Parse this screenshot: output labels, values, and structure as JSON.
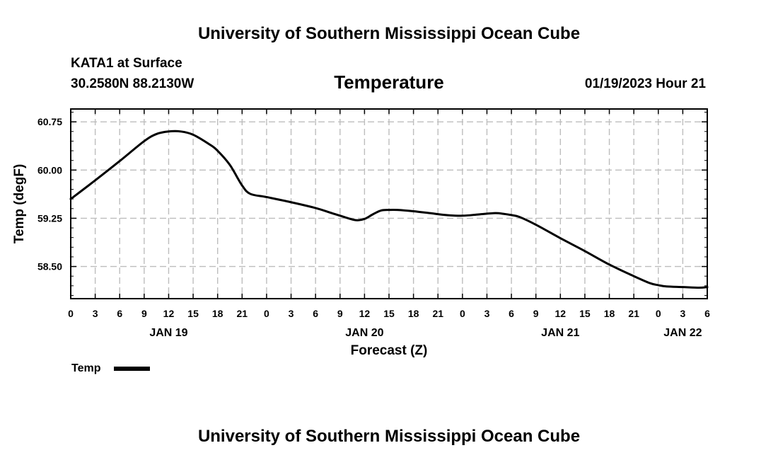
{
  "header": {
    "title": "University of Southern Mississippi Ocean Cube",
    "station": "KATA1 at Surface",
    "coords": "30.2580N  88.2130W",
    "timestamp": "01/19/2023 Hour 21",
    "footer_title": "University of Southern Mississippi Ocean Cube"
  },
  "chart_data": {
    "type": "line",
    "title": "Temperature",
    "xlabel": "Forecast (Z)",
    "ylabel": "Temp (degF)",
    "ylim": [
      58.0,
      60.95
    ],
    "xlim": [
      0,
      78
    ],
    "grid": true,
    "yticks": [
      58.5,
      59.25,
      60.0,
      60.75
    ],
    "ytick_labels": [
      "58.50",
      "59.25",
      "60.00",
      "60.75"
    ],
    "xticks": [
      0,
      3,
      6,
      9,
      12,
      15,
      18,
      21,
      24,
      27,
      30,
      33,
      36,
      39,
      42,
      45,
      48,
      51,
      54,
      57,
      60,
      63,
      66,
      69,
      72,
      75,
      78
    ],
    "xtick_labels": [
      "0",
      "3",
      "6",
      "9",
      "12",
      "15",
      "18",
      "21",
      "0",
      "3",
      "6",
      "9",
      "12",
      "15",
      "18",
      "21",
      "0",
      "3",
      "6",
      "9",
      "12",
      "15",
      "18",
      "21",
      "0",
      "3",
      "6"
    ],
    "day_labels": [
      {
        "x": 12,
        "label": "JAN 19"
      },
      {
        "x": 36,
        "label": "JAN 20"
      },
      {
        "x": 60,
        "label": "JAN 21"
      },
      {
        "x": 75,
        "label": "JAN 22"
      }
    ],
    "series": [
      {
        "name": "Temp",
        "x": [
          0,
          3,
          6,
          9,
          10.5,
          12,
          13.5,
          15,
          17,
          18,
          19.5,
          21,
          22,
          24,
          27,
          30,
          32,
          34,
          35,
          36,
          37,
          38,
          39,
          40,
          42,
          44,
          46,
          48,
          50,
          52,
          53,
          54,
          55,
          57,
          60,
          63,
          66,
          69,
          71,
          72,
          73,
          75,
          77,
          78
        ],
        "values": [
          59.55,
          59.84,
          60.14,
          60.45,
          60.56,
          60.6,
          60.6,
          60.55,
          60.4,
          60.3,
          60.08,
          59.76,
          59.63,
          59.58,
          59.5,
          59.41,
          59.33,
          59.25,
          59.22,
          59.24,
          59.31,
          59.37,
          59.38,
          59.38,
          59.36,
          59.33,
          59.3,
          59.29,
          59.31,
          59.33,
          59.32,
          59.3,
          59.27,
          59.15,
          58.94,
          58.74,
          58.53,
          58.35,
          58.24,
          58.21,
          58.19,
          58.18,
          58.17,
          58.18
        ]
      }
    ],
    "legend": {
      "label": "Temp",
      "position": "bottom-left"
    }
  }
}
